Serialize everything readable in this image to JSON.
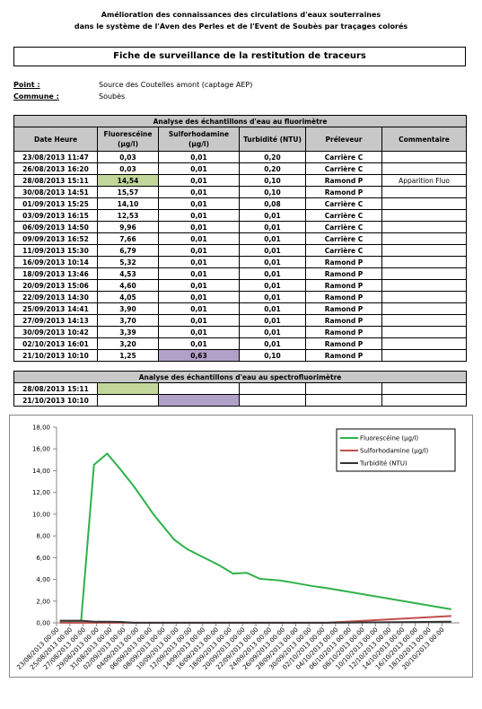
{
  "header": {
    "line1": "Amélioration des connaissances des circulations d'eaux souterraines",
    "line2": "dans le système de l'Aven des Perles et de l'Event de Soubès par traçages colorés"
  },
  "title": "Fiche de surveillance de la restitution de traceurs",
  "point": {
    "label": "Point :",
    "value": "Source des Coutelles  amont (captage AEP)"
  },
  "commune": {
    "label": "Commune :",
    "value": "Soubès"
  },
  "table": {
    "section": "Analyse des échantillons d'eau au fluorimètre",
    "columns": [
      "Date Heure",
      "Fluorescéine (µg/l)",
      "Sulforhodamine (µg/l)",
      "Turbidité (NTU)",
      "Préleveur",
      "Commentaire"
    ],
    "rows": [
      [
        "23/08/2013 11:47",
        "0,03",
        "0,01",
        "0,20",
        "Carrière C"
      ],
      [
        "26/08/2013 16:20",
        "0,03",
        "0,01",
        "0,20",
        "Carrière C"
      ],
      [
        "28/08/2013 15:11",
        "14,54",
        "0,01",
        "0,10",
        "Ramond P",
        "Apparition Fluo"
      ],
      [
        "30/08/2013 14:51",
        "15,57",
        "0,01",
        "0,10",
        "Ramond P"
      ],
      [
        "01/09/2013 15:25",
        "14,10",
        "0,01",
        "0,08",
        "Carrière C"
      ],
      [
        "03/09/2013 16:15",
        "12,53",
        "0,01",
        "0,01",
        "Carrière C"
      ],
      [
        "06/09/2013 14:50",
        "9,96",
        "0,01",
        "0,01",
        "Carrière C"
      ],
      [
        "09/09/2013 16:52",
        "7,66",
        "0,01",
        "0,01",
        "Carrière C"
      ],
      [
        "11/09/2013 15:30",
        "6,79",
        "0,01",
        "0,01",
        "Carrière C"
      ],
      [
        "16/09/2013 10:14",
        "5,32",
        "0,01",
        "0,01",
        "Ramond P"
      ],
      [
        "18/09/2013 13:46",
        "4,53",
        "0,01",
        "0,01",
        "Ramond P"
      ],
      [
        "20/09/2013 15:06",
        "4,60",
        "0,01",
        "0,01",
        "Ramond P"
      ],
      [
        "22/09/2013 14:30",
        "4,05",
        "0,01",
        "0,01",
        "Ramond P"
      ],
      [
        "25/09/2013 14:41",
        "3,90",
        "0,01",
        "0,01",
        "Ramond P"
      ],
      [
        "27/09/2013 14:13",
        "3,70",
        "0,01",
        "0,01",
        "Ramond P"
      ],
      [
        "30/09/2013 10:42",
        "3,39",
        "0,01",
        "0,01",
        "Ramond P"
      ],
      [
        "02/10/2013 16:01",
        "3,20",
        "0,01",
        "0,01",
        "Ramond P"
      ],
      [
        "21/10/2013 10:10",
        "1,25",
        "0,63",
        "0,10",
        "Ramond P"
      ]
    ]
  },
  "table2": {
    "section": "Analyse des échantillons d'eau au spectrofluorimètre",
    "rows": [
      [
        "28/08/2013 15:11"
      ],
      [
        "21/10/2013 10:10"
      ]
    ]
  },
  "chart_data": {
    "type": "line",
    "grid": false,
    "legend": "upper right",
    "x": [
      "2013-08-23T11:47",
      "2013-08-26T16:20",
      "2013-08-28T15:11",
      "2013-08-30T14:51",
      "2013-09-01T15:25",
      "2013-09-03T16:15",
      "2013-09-06T14:50",
      "2013-09-09T16:52",
      "2013-09-11T15:30",
      "2013-09-16T10:14",
      "2013-09-18T13:46",
      "2013-09-20T15:06",
      "2013-09-22T14:30",
      "2013-09-25T14:41",
      "2013-09-27T14:13",
      "2013-09-30T10:42",
      "2013-10-02T16:01",
      "2013-10-21T10:10"
    ],
    "xlim": [
      "2013-08-23T00:00",
      "2013-10-22T16:00"
    ],
    "xticks": [
      {
        "value": "2013-08-23T00:00",
        "label": "23/08/2013 00:00"
      },
      {
        "value": "2013-08-25T00:00",
        "label": "25/08/2013 00:00"
      },
      {
        "value": "2013-08-27T00:00",
        "label": "27/08/2013 00:00"
      },
      {
        "value": "2013-08-29T00:00",
        "label": "29/08/2013 00:00"
      },
      {
        "value": "2013-08-31T00:00",
        "label": "31/08/2013 00:00"
      },
      {
        "value": "2013-09-02T00:00",
        "label": "02/09/2013 00:00"
      },
      {
        "value": "2013-09-04T00:00",
        "label": "04/09/2013 00:00"
      },
      {
        "value": "2013-09-06T00:00",
        "label": "06/09/2013 00:00"
      },
      {
        "value": "2013-09-08T00:00",
        "label": "08/09/2013 00:00"
      },
      {
        "value": "2013-09-10T00:00",
        "label": "10/09/2013 00:00"
      },
      {
        "value": "2013-09-12T00:00",
        "label": "12/09/2013 00:00"
      },
      {
        "value": "2013-09-14T00:00",
        "label": "14/09/2013 00:00"
      },
      {
        "value": "2013-09-16T00:00",
        "label": "16/09/2013 00:00"
      },
      {
        "value": "2013-09-18T00:00",
        "label": "18/09/2013 00:00"
      },
      {
        "value": "2013-09-20T00:00",
        "label": "20/09/2013 00:00"
      },
      {
        "value": "2013-09-22T00:00",
        "label": "22/09/2013 00:00"
      },
      {
        "value": "2013-09-24T00:00",
        "label": "24/09/2013 00:00"
      },
      {
        "value": "2013-09-26T00:00",
        "label": "26/09/2013 00:00"
      },
      {
        "value": "2013-09-28T00:00",
        "label": "28/09/2013 00:00"
      },
      {
        "value": "2013-09-30T00:00",
        "label": "30/09/2013 00:00"
      },
      {
        "value": "2013-10-02T00:00",
        "label": "02/10/2013 00:00"
      },
      {
        "value": "2013-10-04T00:00",
        "label": "04/10/2013 00:00"
      },
      {
        "value": "2013-10-06T00:00",
        "label": "06/10/2013 00:00"
      },
      {
        "value": "2013-10-08T00:00",
        "label": "08/10/2013 00:00"
      },
      {
        "value": "2013-10-10T00:00",
        "label": "10/10/2013 00:00"
      },
      {
        "value": "2013-10-12T00:00",
        "label": "12/10/2013 00:00"
      },
      {
        "value": "2013-10-14T00:00",
        "label": "14/10/2013 00:00"
      },
      {
        "value": "2013-10-16T00:00",
        "label": "16/10/2013 00:00"
      },
      {
        "value": "2013-10-18T00:00",
        "label": "18/10/2013 00:00"
      },
      {
        "value": "2013-10-20T00:00",
        "label": "20/10/2013 00:00"
      }
    ],
    "ylim": [
      0,
      18
    ],
    "yticks": [
      {
        "value": 0,
        "label": "0,00"
      },
      {
        "value": 2,
        "label": "2,00"
      },
      {
        "value": 4,
        "label": "4,00"
      },
      {
        "value": 6,
        "label": "6,00"
      },
      {
        "value": 8,
        "label": "8,00"
      },
      {
        "value": 10,
        "label": "10,00"
      },
      {
        "value": 12,
        "label": "12,00"
      },
      {
        "value": 14,
        "label": "14,00"
      },
      {
        "value": 16,
        "label": "16,00"
      },
      {
        "value": 18,
        "label": "18,00"
      }
    ],
    "series": [
      {
        "name": "Fluorescéine (µg/l)",
        "color": "#2fb14a",
        "values": [
          0.03,
          0.03,
          14.54,
          15.57,
          14.1,
          12.53,
          9.96,
          7.66,
          6.79,
          5.32,
          4.53,
          4.6,
          4.05,
          3.9,
          3.7,
          3.39,
          3.2,
          1.25
        ]
      },
      {
        "name": "Sulforhodamine (µg/l)",
        "color": "#c0504d",
        "values": [
          0.01,
          0.01,
          0.01,
          0.01,
          0.01,
          0.01,
          0.01,
          0.01,
          0.01,
          0.01,
          0.01,
          0.01,
          0.01,
          0.01,
          0.01,
          0.01,
          0.01,
          0.63
        ]
      },
      {
        "name": "Turbidité (NTU)",
        "color": "#333333",
        "values": [
          0.2,
          0.2,
          0.1,
          0.1,
          0.08,
          0.01,
          0.01,
          0.01,
          0.01,
          0.01,
          0.01,
          0.01,
          0.01,
          0.01,
          0.01,
          0.01,
          0.01,
          0.1
        ]
      }
    ]
  }
}
